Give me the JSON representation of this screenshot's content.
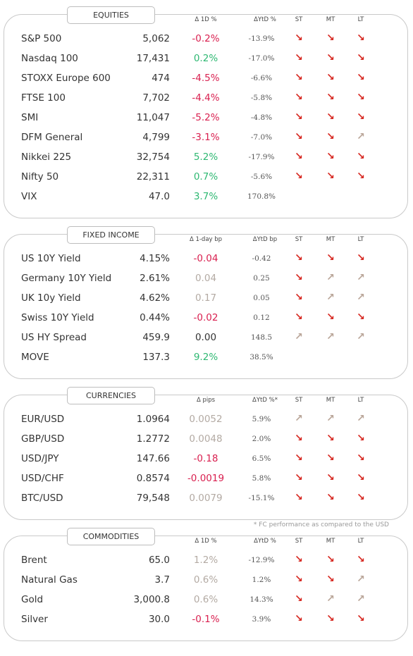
{
  "sections": [
    {
      "title": "EQUITIES",
      "columns": [
        "Δ 1D %",
        "ΔYtD %",
        "ST",
        "MT",
        "LT"
      ],
      "rows": [
        {
          "name": "S&P 500",
          "level": "5,062",
          "change": "-0.2%",
          "change_color": "#d91f4f",
          "ytd": "-13.9%",
          "st": "↘",
          "mt": "↘",
          "lt": "↘"
        },
        {
          "name": "Nasdaq 100",
          "level": "17,431",
          "change": "0.2%",
          "change_color": "#2eb872",
          "ytd": "-17.0%",
          "st": "↘",
          "mt": "↘",
          "lt": "↘"
        },
        {
          "name": "STOXX Europe 600",
          "level": "474",
          "change": "-4.5%",
          "change_color": "#d91f4f",
          "ytd": "-6.6%",
          "st": "↘",
          "mt": "↘",
          "lt": "↘"
        },
        {
          "name": "FTSE 100",
          "level": "7,702",
          "change": "-4.4%",
          "change_color": "#d91f4f",
          "ytd": "-5.8%",
          "st": "↘",
          "mt": "↘",
          "lt": "↘"
        },
        {
          "name": "SMI",
          "level": "11,047",
          "change": "-5.2%",
          "change_color": "#d91f4f",
          "ytd": "-4.8%",
          "st": "↘",
          "mt": "↘",
          "lt": "↘"
        },
        {
          "name": "DFM General",
          "level": "4,799",
          "change": "-3.1%",
          "change_color": "#d91f4f",
          "ytd": "-7.0%",
          "st": "↘",
          "mt": "↘",
          "lt": "↗"
        },
        {
          "name": "Nikkei 225",
          "level": "32,754",
          "change": "5.2%",
          "change_color": "#2eb872",
          "ytd": "-17.9%",
          "st": "↘",
          "mt": "↘",
          "lt": "↘"
        },
        {
          "name": "Nifty 50",
          "level": "22,311",
          "change": "0.7%",
          "change_color": "#2eb872",
          "ytd": "-5.6%",
          "st": "↘",
          "mt": "↘",
          "lt": "↘"
        },
        {
          "name": "VIX",
          "level": "47.0",
          "change": "3.7%",
          "change_color": "#2eb872",
          "ytd": "170.8%",
          "st": null,
          "mt": null,
          "lt": null
        }
      ]
    },
    {
      "title": "FIXED INCOME",
      "columns": [
        "Δ 1-day bp",
        "ΔYtD bp",
        "ST",
        "MT",
        "LT"
      ],
      "rows": [
        {
          "name": "US 10Y Yield",
          "level": "4.15%",
          "change": "-0.04",
          "change_color": "#d91f4f",
          "ytd": "-0.42",
          "st": "↘",
          "mt": "↘",
          "lt": "↘"
        },
        {
          "name": "Germany 10Y Yield",
          "level": "2.61%",
          "change": "0.04",
          "change_color": "#b3aaa3",
          "ytd": "0.25",
          "st": "↘",
          "mt": "↗",
          "lt": "↗"
        },
        {
          "name": "UK 10y Yield",
          "level": "4.62%",
          "change": "0.17",
          "change_color": "#b3aaa3",
          "ytd": "0.05",
          "st": "↘",
          "mt": "↗",
          "lt": "↗"
        },
        {
          "name": "Swiss 10Y Yield",
          "level": "0.44%",
          "change": "-0.02",
          "change_color": "#d91f4f",
          "ytd": "0.12",
          "st": "↘",
          "mt": "↘",
          "lt": "↘"
        },
        {
          "name": "US HY Spread",
          "level": "459.9",
          "change": "0.00",
          "change_color": "#333333",
          "ytd": "148.5",
          "st": "↗",
          "mt": "↗",
          "lt": "↗"
        },
        {
          "name": "MOVE",
          "level": "137.3",
          "change": "9.2%",
          "change_color": "#2eb872",
          "ytd": "38.5%",
          "st": null,
          "mt": null,
          "lt": null
        }
      ]
    },
    {
      "title": "CURRENCIES",
      "columns": [
        "Δ pips",
        "ΔYtD %*",
        "ST",
        "MT",
        "LT"
      ],
      "rows": [
        {
          "name": "EUR/USD",
          "level": "1.0964",
          "change": "0.0052",
          "change_color": "#b3aaa3",
          "ytd": "5.9%",
          "st": "↗",
          "mt": "↗",
          "lt": "↗"
        },
        {
          "name": "GBP/USD",
          "level": "1.2772",
          "change": "0.0048",
          "change_color": "#b3aaa3",
          "ytd": "2.0%",
          "st": "↘",
          "mt": "↘",
          "lt": "↘"
        },
        {
          "name": "USD/JPY",
          "level": "147.66",
          "change": "-0.18",
          "change_color": "#d91f4f",
          "ytd": "6.5%",
          "st": "↘",
          "mt": "↘",
          "lt": "↘"
        },
        {
          "name": "USD/CHF",
          "level": "0.8574",
          "change": "-0.0019",
          "change_color": "#d91f4f",
          "ytd": "5.8%",
          "st": "↘",
          "mt": "↘",
          "lt": "↘"
        },
        {
          "name": "BTC/USD",
          "level": "79,548",
          "change": "0.0079",
          "change_color": "#b3aaa3",
          "ytd": "-15.1%",
          "st": "↘",
          "mt": "↘",
          "lt": "↘"
        }
      ]
    },
    {
      "title": "COMMODITIES",
      "columns": [
        "Δ 1D %",
        "ΔYtD %",
        "ST",
        "MT",
        "LT"
      ],
      "rows": [
        {
          "name": "Brent",
          "level": "65.0",
          "change": "1.2%",
          "change_color": "#b3aaa3",
          "ytd": "-12.9%",
          "st": "↘",
          "mt": "↘",
          "lt": "↘"
        },
        {
          "name": "Natural Gas",
          "level": "3.7",
          "change": "0.6%",
          "change_color": "#b3aaa3",
          "ytd": "1.2%",
          "st": "↘",
          "mt": "↘",
          "lt": "↗"
        },
        {
          "name": "Gold",
          "level": "3,000.8",
          "change": "0.6%",
          "change_color": "#b3aaa3",
          "ytd": "14.3%",
          "st": "↘",
          "mt": "↗",
          "lt": "↗"
        },
        {
          "name": "Silver",
          "level": "30.0",
          "change": "-0.1%",
          "change_color": "#d91f4f",
          "ytd": "3.9%",
          "st": "↘",
          "mt": "↘",
          "lt": "↘"
        }
      ]
    }
  ],
  "footnote": "* FC performance as compared to the USD",
  "arrow_colors": {
    "↘": "#d6261f",
    "↗": "#b9a598"
  }
}
